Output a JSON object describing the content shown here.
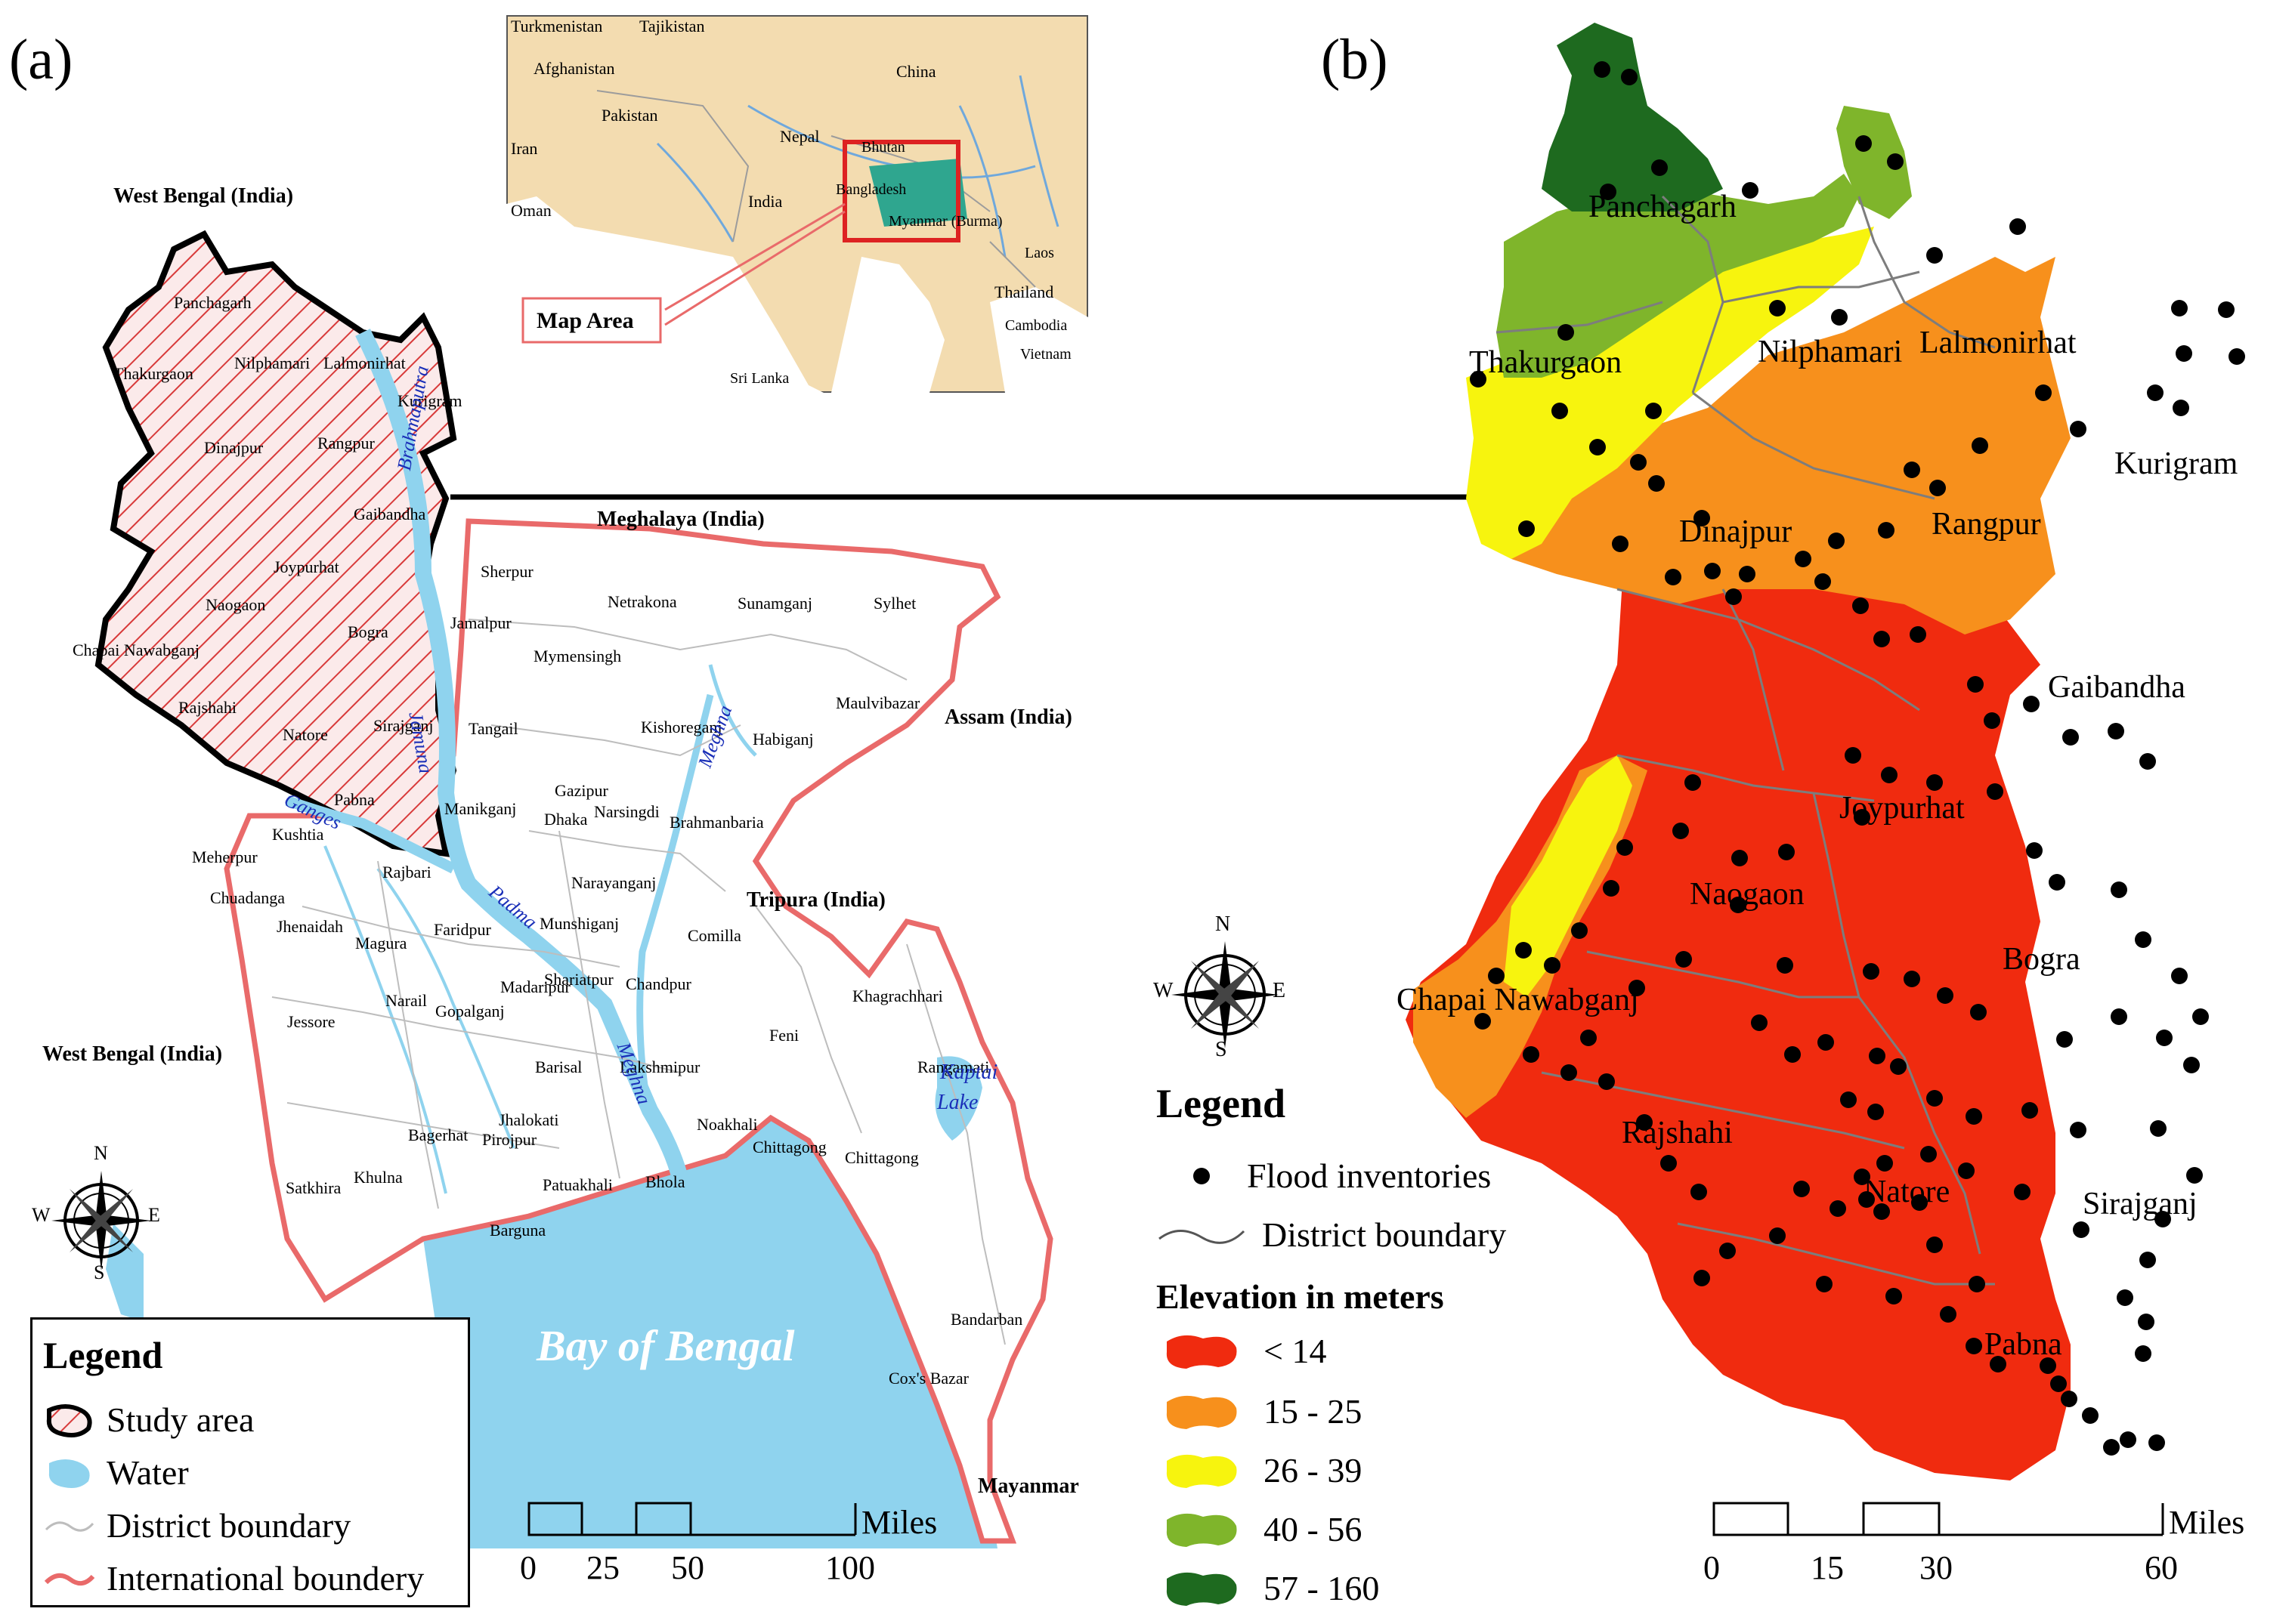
{
  "panels": {
    "a": "(a)",
    "b": "(b)"
  },
  "inset": {
    "countries": [
      "Turkmenistan",
      "Tajikistan",
      "Afghanistan",
      "China",
      "Pakistan",
      "Iran",
      "Nepal",
      "Bhutan",
      "India",
      "Bangladesh",
      "Oman",
      "Myanmar (Burma)",
      "Laos",
      "Thailand",
      "Cambodia",
      "Vietnam",
      "Sri Lanka"
    ],
    "map_area_label": "Map Area"
  },
  "map_a": {
    "neighbors": {
      "west_bengal_top": "West Bengal (India)",
      "west_bengal_left": "West Bengal (India)",
      "meghalaya": "Meghalaya (India)",
      "assam": "Assam (India)",
      "tripura": "Tripura (India)",
      "myanmar": "Mayanmar"
    },
    "study_districts": [
      "Panchagarh",
      "Thakurgaon",
      "Nilphamari",
      "Lalmonirhat",
      "Kurigram",
      "Dinajpur",
      "Rangpur",
      "Gaibandha",
      "Joypurhat",
      "Naogaon",
      "Bogra",
      "Chapai Nawabganj",
      "Rajshahi",
      "Natore",
      "Sirajganj",
      "Pabna"
    ],
    "other_districts": [
      "Sherpur",
      "Netrakona",
      "Sunamganj",
      "Sylhet",
      "Jamalpur",
      "Mymensingh",
      "Maulvibazar",
      "Tangail",
      "Kishoreganj",
      "Habiganj",
      "Gazipur",
      "Narsingdi",
      "Brahmanbaria",
      "Kushtia",
      "Manikganj",
      "Dhaka",
      "Meherpur",
      "Rajbari",
      "Narayanganj",
      "Chuadanga",
      "Jhenaidah",
      "Magura",
      "Faridpur",
      "Munshiganj",
      "Comilla",
      "Madaripur",
      "Shariatpur",
      "Chandpur",
      "Khagrachhari",
      "Narail",
      "Gopalganj",
      "Jessore",
      "Feni",
      "Rangamati",
      "Barisal",
      "Lakshmipur",
      "Jhalokati",
      "Noakhali",
      "Bagerhat",
      "Pirojpur",
      "Chittagong",
      "Satkhira",
      "Khulna",
      "Patuakhali",
      "Bhola",
      "Barguna",
      "Bandarban",
      "Cox's Bazar"
    ],
    "rivers": [
      "Brahmaputra",
      "Jamuna",
      "Ganges",
      "Padma",
      "Meghna",
      "Meghna"
    ],
    "lake": [
      "Kaptai",
      "Lake"
    ],
    "sea": "Bay of Bengal",
    "compass": {
      "n": "N",
      "s": "S",
      "e": "E",
      "w": "W"
    },
    "legend": {
      "title": "Legend",
      "items": [
        "Study area",
        "Water",
        "District boundary",
        "International boundery"
      ]
    },
    "scale": {
      "ticks": [
        "0",
        "25",
        "50",
        "100"
      ],
      "unit": "Miles"
    }
  },
  "map_b": {
    "districts": [
      "Panchagarh",
      "Thakurgaon",
      "Nilphamari",
      "Lalmonirhat",
      "Kurigram",
      "Dinajpur",
      "Rangpur",
      "Gaibandha",
      "Joypurhat",
      "Naogaon",
      "Chapai Nawabganj",
      "Bogra",
      "Rajshahi",
      "Natore",
      "Sirajganj",
      "Pabna"
    ],
    "compass": {
      "n": "N",
      "s": "S",
      "e": "E",
      "w": "W"
    },
    "legend": {
      "title": "Legend",
      "items": [
        "Flood inventories",
        "District boundary"
      ],
      "elevation_title": "Elevation in meters",
      "elevation_classes": [
        {
          "label": "< 14",
          "color": "#f02b0f"
        },
        {
          "label": "15 - 25",
          "color": "#f7901c"
        },
        {
          "label": "26 - 39",
          "color": "#f7f40e"
        },
        {
          "label": "40 - 56",
          "color": "#7fb52b"
        },
        {
          "label": "57 - 160",
          "color": "#1e6a1f"
        }
      ]
    },
    "scale": {
      "ticks": [
        "0",
        "15",
        "30",
        "60"
      ],
      "unit": "Miles"
    }
  },
  "colors": {
    "water": "#8fd3ee",
    "intl_boundary": "#e96a6a",
    "study_hatch": "#d83a3a",
    "inset_land": "#f3dcb0"
  }
}
